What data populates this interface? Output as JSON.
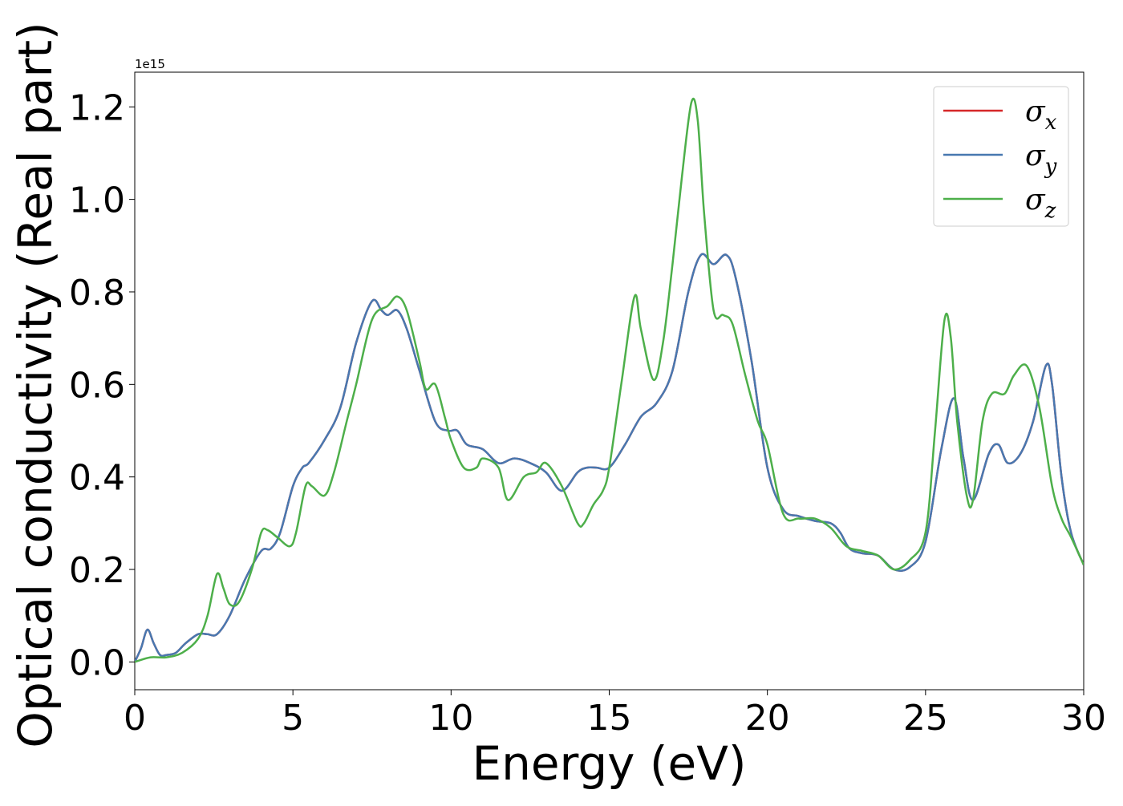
{
  "chart_data": {
    "type": "line",
    "xlabel": "Energy (eV)",
    "ylabel": "Optical conductivity (Real part)",
    "y_offset_label": "1e15",
    "xlim": [
      0,
      30
    ],
    "ylim": [
      -0.06,
      1.275
    ],
    "y_scale": 1000000000000000.0,
    "x_ticks": [
      0,
      5,
      10,
      15,
      20,
      25,
      30
    ],
    "x_tick_labels": [
      "0",
      "5",
      "10",
      "15",
      "20",
      "25",
      "30"
    ],
    "y_ticks": [
      0.0,
      0.2,
      0.4,
      0.6,
      0.8,
      1.0,
      1.2
    ],
    "y_tick_labels": [
      "0.0",
      "0.2",
      "0.4",
      "0.6",
      "0.8",
      "1.0",
      "1.2"
    ],
    "grid": false,
    "legend_position": "top-right",
    "legend_entries": [
      {
        "base": "σ",
        "sub": "x"
      },
      {
        "base": "σ",
        "sub": "y"
      },
      {
        "base": "σ",
        "sub": "z"
      }
    ],
    "series": [
      {
        "name": "σx",
        "color": "#d62728",
        "x": [
          0,
          0.2,
          0.4,
          0.6,
          0.8,
          1.0,
          1.3,
          1.6,
          2.0,
          2.3,
          2.6,
          3.0,
          3.5,
          4.0,
          4.3,
          4.6,
          5.0,
          5.3,
          5.5,
          6.0,
          6.5,
          7.0,
          7.5,
          7.8,
          8.0,
          8.3,
          8.6,
          9.0,
          9.5,
          9.9,
          10.2,
          10.5,
          11.0,
          11.5,
          12.0,
          12.5,
          13.0,
          13.5,
          14.0,
          14.3,
          14.6,
          15.0,
          15.5,
          16.0,
          16.5,
          17.0,
          17.5,
          17.9,
          18.3,
          18.7,
          19.0,
          19.5,
          20.0,
          20.5,
          21.0,
          21.5,
          22.0,
          22.3,
          22.6,
          23.0,
          23.5,
          24.0,
          24.5,
          25.0,
          25.5,
          25.9,
          26.2,
          26.5,
          27.0,
          27.3,
          27.6,
          28.0,
          28.4,
          28.8,
          29.0,
          29.3,
          29.6,
          30.0
        ],
        "values": [
          0.0,
          0.03,
          0.07,
          0.04,
          0.015,
          0.015,
          0.02,
          0.04,
          0.06,
          0.06,
          0.06,
          0.1,
          0.18,
          0.24,
          0.245,
          0.28,
          0.38,
          0.42,
          0.43,
          0.48,
          0.55,
          0.69,
          0.78,
          0.76,
          0.75,
          0.76,
          0.72,
          0.63,
          0.52,
          0.5,
          0.5,
          0.47,
          0.46,
          0.43,
          0.44,
          0.43,
          0.41,
          0.37,
          0.41,
          0.42,
          0.42,
          0.42,
          0.47,
          0.53,
          0.56,
          0.63,
          0.8,
          0.88,
          0.86,
          0.88,
          0.83,
          0.65,
          0.42,
          0.33,
          0.315,
          0.305,
          0.3,
          0.28,
          0.245,
          0.235,
          0.23,
          0.2,
          0.205,
          0.26,
          0.46,
          0.57,
          0.44,
          0.35,
          0.45,
          0.47,
          0.43,
          0.45,
          0.52,
          0.64,
          0.6,
          0.4,
          0.28,
          0.21
        ]
      },
      {
        "name": "σy",
        "color": "#4878b0",
        "x": [
          0,
          0.2,
          0.4,
          0.6,
          0.8,
          1.0,
          1.3,
          1.6,
          2.0,
          2.3,
          2.6,
          3.0,
          3.5,
          4.0,
          4.3,
          4.6,
          5.0,
          5.3,
          5.5,
          6.0,
          6.5,
          7.0,
          7.5,
          7.8,
          8.0,
          8.3,
          8.6,
          9.0,
          9.5,
          9.9,
          10.2,
          10.5,
          11.0,
          11.5,
          12.0,
          12.5,
          13.0,
          13.5,
          14.0,
          14.3,
          14.6,
          15.0,
          15.5,
          16.0,
          16.5,
          17.0,
          17.5,
          17.9,
          18.3,
          18.7,
          19.0,
          19.5,
          20.0,
          20.5,
          21.0,
          21.5,
          22.0,
          22.3,
          22.6,
          23.0,
          23.5,
          24.0,
          24.5,
          25.0,
          25.5,
          25.9,
          26.2,
          26.5,
          27.0,
          27.3,
          27.6,
          28.0,
          28.4,
          28.8,
          29.0,
          29.3,
          29.6,
          30.0
        ],
        "values": [
          0.0,
          0.03,
          0.07,
          0.04,
          0.015,
          0.015,
          0.02,
          0.04,
          0.06,
          0.06,
          0.06,
          0.1,
          0.18,
          0.24,
          0.245,
          0.28,
          0.38,
          0.42,
          0.43,
          0.48,
          0.55,
          0.69,
          0.78,
          0.76,
          0.75,
          0.76,
          0.72,
          0.63,
          0.52,
          0.5,
          0.5,
          0.47,
          0.46,
          0.43,
          0.44,
          0.43,
          0.41,
          0.37,
          0.41,
          0.42,
          0.42,
          0.42,
          0.47,
          0.53,
          0.56,
          0.63,
          0.8,
          0.88,
          0.86,
          0.88,
          0.83,
          0.65,
          0.42,
          0.33,
          0.315,
          0.305,
          0.3,
          0.28,
          0.245,
          0.235,
          0.23,
          0.2,
          0.205,
          0.26,
          0.46,
          0.57,
          0.44,
          0.35,
          0.45,
          0.47,
          0.43,
          0.45,
          0.52,
          0.64,
          0.6,
          0.4,
          0.28,
          0.21
        ]
      },
      {
        "name": "σz",
        "color": "#4daf4a",
        "x": [
          0,
          0.5,
          1.0,
          1.5,
          2.0,
          2.3,
          2.6,
          2.8,
          3.0,
          3.3,
          3.7,
          4.0,
          4.2,
          4.5,
          4.9,
          5.1,
          5.4,
          5.6,
          6.0,
          6.3,
          6.7,
          7.0,
          7.5,
          8.0,
          8.3,
          8.6,
          9.0,
          9.2,
          9.5,
          9.8,
          10.0,
          10.4,
          10.8,
          11.0,
          11.5,
          11.8,
          12.3,
          12.7,
          13.0,
          13.5,
          14.0,
          14.2,
          14.5,
          14.8,
          15.0,
          15.4,
          15.8,
          16.0,
          16.4,
          16.7,
          17.0,
          17.3,
          17.6,
          17.8,
          18.0,
          18.3,
          18.6,
          18.9,
          19.3,
          19.7,
          20.0,
          20.5,
          21.0,
          21.5,
          22.0,
          22.5,
          23.0,
          23.5,
          24.0,
          24.5,
          25.0,
          25.3,
          25.6,
          25.8,
          26.0,
          26.3,
          26.5,
          26.8,
          27.1,
          27.5,
          27.8,
          28.2,
          28.6,
          29.0,
          29.3,
          29.6,
          30.0
        ],
        "values": [
          0.0,
          0.01,
          0.01,
          0.02,
          0.05,
          0.1,
          0.19,
          0.16,
          0.125,
          0.13,
          0.2,
          0.28,
          0.285,
          0.27,
          0.25,
          0.28,
          0.38,
          0.38,
          0.36,
          0.41,
          0.52,
          0.6,
          0.74,
          0.77,
          0.79,
          0.76,
          0.65,
          0.59,
          0.6,
          0.53,
          0.48,
          0.42,
          0.42,
          0.44,
          0.42,
          0.35,
          0.4,
          0.41,
          0.43,
          0.38,
          0.3,
          0.3,
          0.34,
          0.37,
          0.42,
          0.61,
          0.79,
          0.72,
          0.61,
          0.69,
          0.86,
          1.05,
          1.21,
          1.17,
          0.97,
          0.76,
          0.75,
          0.73,
          0.62,
          0.52,
          0.47,
          0.32,
          0.31,
          0.31,
          0.29,
          0.25,
          0.24,
          0.23,
          0.2,
          0.22,
          0.28,
          0.5,
          0.74,
          0.7,
          0.52,
          0.36,
          0.35,
          0.52,
          0.58,
          0.58,
          0.62,
          0.64,
          0.55,
          0.38,
          0.31,
          0.27,
          0.21
        ]
      }
    ]
  }
}
